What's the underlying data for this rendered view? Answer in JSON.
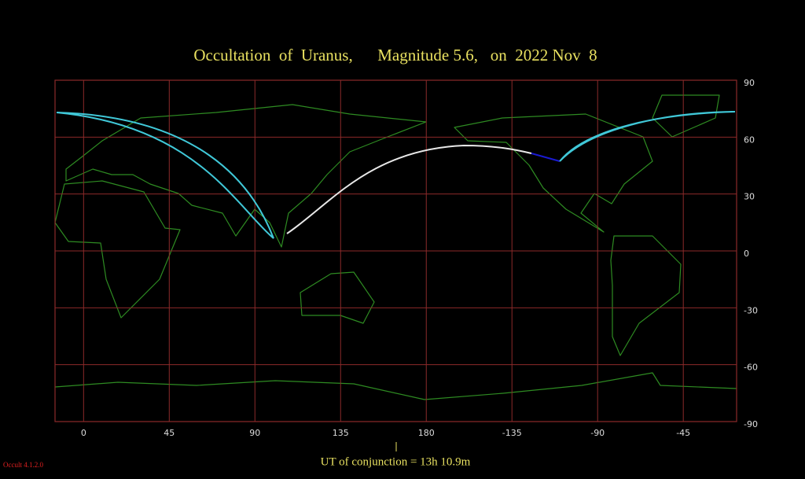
{
  "chart_data": {
    "type": "map",
    "title": "Occultation  of  Uranus,      Magnitude 5.6,   on  2022 Nov  8",
    "xlim": [
      -15,
      343
    ],
    "ylim": [
      -90,
      90
    ],
    "xticks": [
      0,
      45,
      90,
      135,
      180,
      {
        "value": 225,
        "label": "-135"
      },
      {
        "value": 270,
        "label": "-90"
      },
      {
        "value": 315,
        "label": "-45"
      }
    ],
    "yticks": [
      90,
      60,
      30,
      0,
      -30,
      -60,
      -90
    ],
    "grid": true,
    "footer": "UT of conjunction = 13h 10.9m",
    "version": "Occult 4.1.2.0"
  }
}
